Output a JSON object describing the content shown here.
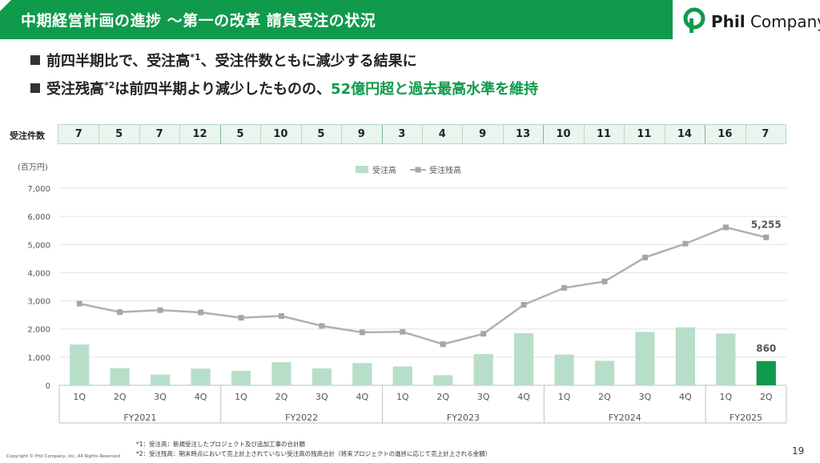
{
  "header": {
    "title": "中期経営計画の進捗 〜第一の改革 請負受注の状況"
  },
  "logo": {
    "name_bold": "Phil",
    "name_light": " Company",
    "icon": "phil-company-logo-icon",
    "brand_color": "#0f9a4c"
  },
  "bullets": {
    "b1_text_a": "前四半期比で、受注高",
    "b1_sup": "*1",
    "b1_text_b": "、受注件数ともに減少する結果に",
    "b2_text_a": "受注残高",
    "b2_sup": "*2",
    "b2_text_b": "は前四半期より減少したものの、",
    "b2_highlight": "52億円超と過去最高水準を維持"
  },
  "counts": {
    "label": "受注件数",
    "values": [
      7,
      5,
      7,
      12,
      5,
      10,
      5,
      9,
      3,
      4,
      9,
      13,
      10,
      11,
      11,
      14,
      16,
      7
    ]
  },
  "chart_data": {
    "type": "bar",
    "unit_label": "(百万円)",
    "categories": [
      "1Q",
      "2Q",
      "3Q",
      "4Q",
      "1Q",
      "2Q",
      "3Q",
      "4Q",
      "1Q",
      "2Q",
      "3Q",
      "4Q",
      "1Q",
      "2Q",
      "3Q",
      "4Q",
      "1Q",
      "2Q"
    ],
    "year_groups": [
      {
        "label": "FY2021",
        "count": 4
      },
      {
        "label": "FY2022",
        "count": 4
      },
      {
        "label": "FY2023",
        "count": 4
      },
      {
        "label": "FY2024",
        "count": 4
      },
      {
        "label": "FY2025",
        "count": 2
      }
    ],
    "ylim": [
      0,
      7000
    ],
    "yticks": [
      0,
      1000,
      2000,
      3000,
      4000,
      5000,
      6000,
      7000
    ],
    "ytick_labels": [
      "0",
      "1,000",
      "2,000",
      "3,000",
      "4,000",
      "5,000",
      "6,000",
      "7,000"
    ],
    "grid": true,
    "legend_position": "top-center",
    "series": [
      {
        "name": "受注高",
        "type": "bar",
        "color": "#b7dec9",
        "highlight_color": "#0f9a4c",
        "values": [
          1450,
          610,
          380,
          590,
          510,
          820,
          600,
          790,
          670,
          360,
          1110,
          1850,
          1090,
          870,
          1900,
          2060,
          1840,
          860
        ]
      },
      {
        "name": "受注残高",
        "type": "line",
        "color": "#b0b0b0",
        "values": [
          2900,
          2600,
          2670,
          2590,
          2400,
          2460,
          2110,
          1880,
          1900,
          1460,
          1830,
          2860,
          3460,
          3690,
          4540,
          5030,
          5610,
          5255
        ]
      }
    ],
    "annotations": [
      {
        "series": "受注残高",
        "index": 17,
        "text": "5,255"
      },
      {
        "series": "受注高",
        "index": 17,
        "text": "860"
      }
    ]
  },
  "footnotes": {
    "fn1": "*1：受注高：新規受注したプロジェクト及び追加工事の合計額",
    "fn2": "*2：受注残高：期末時点において売上計上されていない受注高の残高合計（将来プロジェクトの進捗に応じて売上計上される金額）"
  },
  "copyright": "Copyright © Phil Company, Inc.  All Rights Reserved",
  "page_number": "19"
}
